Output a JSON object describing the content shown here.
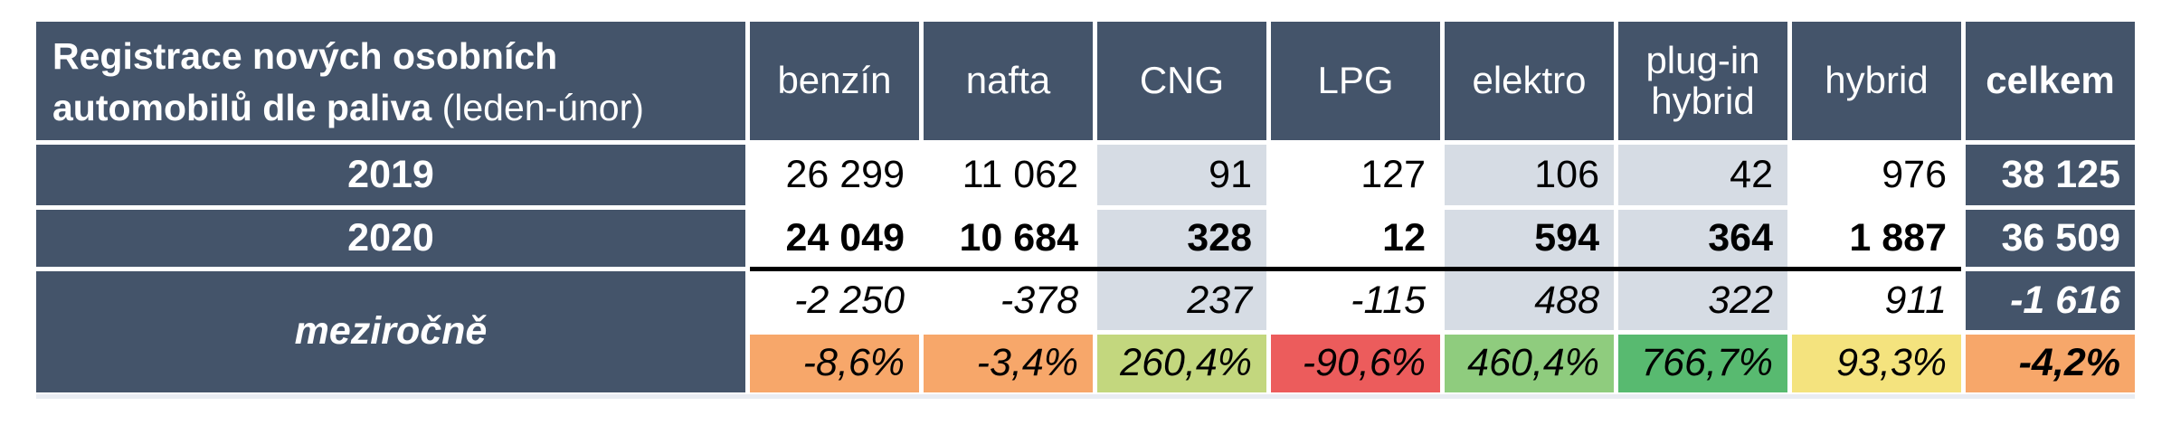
{
  "title": {
    "bold": "Registrace nových osobních automobilů dle paliva",
    "note": "(leden-únor)"
  },
  "columns": [
    "benzín",
    "nafta",
    "CNG",
    "LPG",
    "elektro",
    "plug-in hybrid",
    "hybrid",
    "celkem"
  ],
  "rows": {
    "y2019": {
      "label": "2019",
      "values": [
        "26 299",
        "11 062",
        "91",
        "127",
        "106",
        "42",
        "976"
      ],
      "total": "38 125"
    },
    "y2020": {
      "label": "2020",
      "values": [
        "24 049",
        "10 684",
        "328",
        "12",
        "594",
        "364",
        "1 887"
      ],
      "total": "36 509"
    },
    "yoy": {
      "label": "meziročně",
      "diff": {
        "values": [
          "-2 250",
          "-378",
          "237",
          "-115",
          "488",
          "322",
          "911"
        ],
        "total": "-1 616"
      },
      "pct": {
        "values": [
          "-8,6%",
          "-3,4%",
          "260,4%",
          "-90,6%",
          "460,4%",
          "766,7%",
          "93,3%"
        ],
        "total": "-4,2%"
      }
    }
  },
  "colors": {
    "header_bg": "#44546A",
    "alt_fuel_highlight_bg": "#D6DCE4",
    "cell_separator": "#FFFFFF",
    "divider_line": "#000000",
    "pct_scale_cells": [
      "#F7A76A",
      "#F7A76A",
      "#C3D77E",
      "#EC5C5C",
      "#8FCC7E",
      "#58BA70",
      "#F4E37E",
      "#F7A76A"
    ]
  },
  "chart_data": {
    "type": "table",
    "title": "Registrace nových osobních automobilů dle paliva (leden-únor)",
    "categories": [
      "benzín",
      "nafta",
      "CNG",
      "LPG",
      "elektro",
      "plug-in hybrid",
      "hybrid",
      "celkem"
    ],
    "series": [
      {
        "name": "2019",
        "values": [
          26299,
          11062,
          91,
          127,
          106,
          42,
          976,
          38125
        ]
      },
      {
        "name": "2020",
        "values": [
          24049,
          10684,
          328,
          12,
          594,
          364,
          1887,
          36509
        ]
      },
      {
        "name": "meziročně rozdíl",
        "values": [
          -2250,
          -378,
          237,
          -115,
          488,
          322,
          911,
          -1616
        ]
      },
      {
        "name": "meziročně %",
        "values": [
          -8.6,
          -3.4,
          260.4,
          -90.6,
          460.4,
          766.7,
          93.3,
          -4.2
        ]
      }
    ],
    "layout": {
      "highlighted_columns": [
        "CNG",
        "elektro",
        "plug-in hybrid"
      ],
      "pct_row_color_scale": "red-yellow-green"
    }
  }
}
